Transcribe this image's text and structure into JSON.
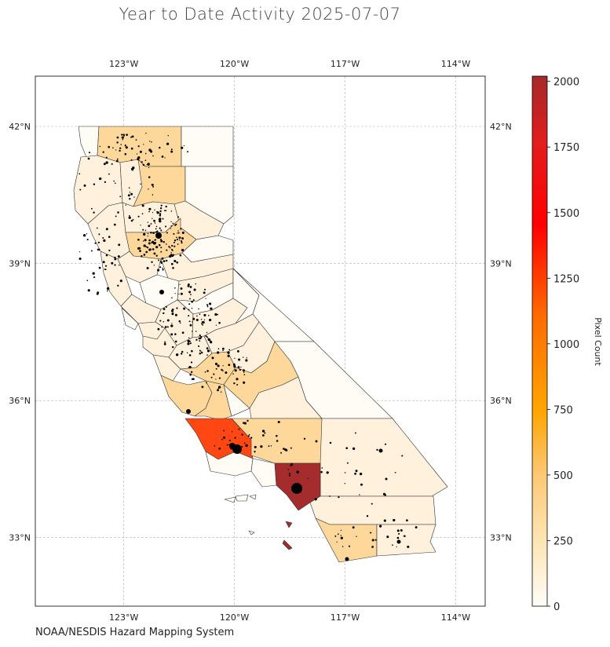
{
  "title": "Year to Date Activity 2025-07-07",
  "credit": "NOAA/NESDIS Hazard Mapping System",
  "map": {
    "region": "California",
    "projection": "PlateCarree",
    "lon_range": [
      -125.4,
      -113.2
    ],
    "lat_range": [
      31.5,
      43.1
    ],
    "lon_ticks": [
      {
        "value": -123,
        "label": "123°W"
      },
      {
        "value": -120,
        "label": "120°W"
      },
      {
        "value": -117,
        "label": "117°W"
      },
      {
        "value": -114,
        "label": "114°W"
      }
    ],
    "lat_ticks": [
      {
        "value": 42,
        "label": "42°N"
      },
      {
        "value": 39,
        "label": "39°N"
      },
      {
        "value": 36,
        "label": "36°N"
      },
      {
        "value": 33,
        "label": "33°N"
      }
    ],
    "grid": true,
    "fill_colors": {
      "none": "#fffcf6",
      "low": "#fff1db",
      "mid": "#fdd89a",
      "high": "#ff4714",
      "max": "#a52c2c"
    },
    "hotspot_color": "#000000"
  },
  "colorbar": {
    "label": "Pixel Count",
    "min": 0,
    "max": 2020,
    "ticks": [
      {
        "value": 0,
        "label": "0"
      },
      {
        "value": 250,
        "label": "250"
      },
      {
        "value": 500,
        "label": "500"
      },
      {
        "value": 750,
        "label": "750"
      },
      {
        "value": 1000,
        "label": "1000"
      },
      {
        "value": 1250,
        "label": "1250"
      },
      {
        "value": 1500,
        "label": "1500"
      },
      {
        "value": 1750,
        "label": "1750"
      },
      {
        "value": 2000,
        "label": "2000"
      }
    ],
    "stops": [
      "#fffdf8",
      "#fde1a8",
      "#ffa500",
      "#ff4500",
      "#ff0000",
      "#a52a2a"
    ]
  }
}
